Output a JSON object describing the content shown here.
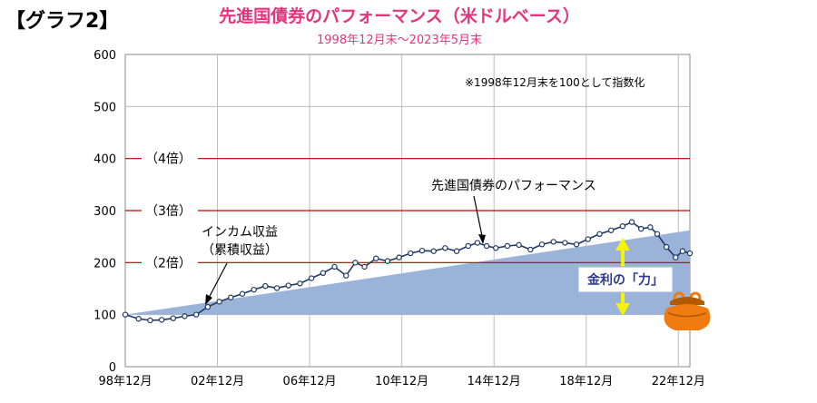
{
  "header": {
    "tag": "【グラフ2】",
    "title": "先進国債券のパフォーマンス（米ドルベース）",
    "subtitle": "1998年12月末～2023年5月末"
  },
  "colors": {
    "title": "#e8337e",
    "area": "#9bb3d9",
    "line": "#1f3864",
    "refline": "#cc0000",
    "arrow": "#f5f500",
    "label_text": "#2e3a8c",
    "purse": "#f07b10"
  },
  "chart_data": {
    "type": "line",
    "note": "※1998年12月末を100として指数化",
    "ylim": [
      0,
      600
    ],
    "yticks": [
      0,
      100,
      200,
      300,
      400,
      500,
      600
    ],
    "xlim": [
      1998.92,
      2023.42
    ],
    "xticks": [
      {
        "x": 1998.92,
        "label": "98年12月"
      },
      {
        "x": 2002.92,
        "label": "02年12月"
      },
      {
        "x": 2006.92,
        "label": "06年12月"
      },
      {
        "x": 2010.92,
        "label": "10年12月"
      },
      {
        "x": 2014.92,
        "label": "14年12月"
      },
      {
        "x": 2018.92,
        "label": "18年12月"
      },
      {
        "x": 2022.92,
        "label": "22年12月"
      }
    ],
    "reference_lines": [
      {
        "y": 200,
        "label": "（2倍）"
      },
      {
        "y": 300,
        "label": "（3倍）"
      },
      {
        "y": 400,
        "label": "（4倍）"
      }
    ],
    "series": [
      {
        "name": "先進国債券のパフォーマンス",
        "type": "line",
        "x": [
          1998.92,
          1999.5,
          2000.0,
          2000.5,
          2001.0,
          2001.5,
          2002.0,
          2002.5,
          2003.0,
          2003.5,
          2004.0,
          2004.5,
          2005.0,
          2005.5,
          2006.0,
          2006.5,
          2007.0,
          2007.5,
          2008.0,
          2008.5,
          2008.9,
          2009.3,
          2009.8,
          2010.3,
          2010.8,
          2011.3,
          2011.8,
          2012.3,
          2012.8,
          2013.3,
          2013.8,
          2014.2,
          2014.6,
          2015.0,
          2015.5,
          2016.0,
          2016.5,
          2017.0,
          2017.5,
          2018.0,
          2018.5,
          2019.0,
          2019.5,
          2020.0,
          2020.5,
          2020.9,
          2021.3,
          2021.7,
          2022.0,
          2022.4,
          2022.8,
          2023.1,
          2023.42
        ],
        "values": [
          100,
          92,
          89,
          90,
          93,
          97,
          100,
          115,
          125,
          133,
          140,
          148,
          155,
          151,
          156,
          160,
          170,
          180,
          192,
          175,
          200,
          192,
          208,
          203,
          210,
          218,
          223,
          222,
          228,
          222,
          232,
          238,
          232,
          228,
          232,
          234,
          225,
          235,
          240,
          238,
          235,
          245,
          255,
          262,
          270,
          278,
          265,
          268,
          255,
          230,
          210,
          222,
          218
        ]
      },
      {
        "name": "インカム収益（累積収益）",
        "type": "area",
        "x": [
          1998.92,
          2023.42
        ],
        "values": [
          100,
          262
        ]
      }
    ]
  },
  "annotations": {
    "bond_label": "先進国債券のパフォーマンス",
    "income_label_1": "インカム収益",
    "income_label_2": "（累積収益）",
    "interest_power": "金利の「力」"
  }
}
